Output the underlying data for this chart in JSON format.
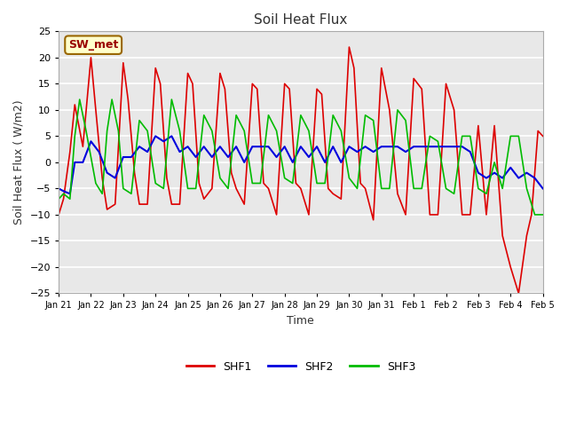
{
  "title": "Soil Heat Flux",
  "xlabel": "Time",
  "ylabel": "Soil Heat Flux ( W/m2)",
  "ylim": [
    -25,
    25
  ],
  "fig_bg_color": "#ffffff",
  "plot_bg_color": "#e8e8e8",
  "grid_color": "#ffffff",
  "annotation_text": "SW_met",
  "annotation_bg": "#ffffcc",
  "annotation_border": "#996600",
  "annotation_text_color": "#990000",
  "legend_labels": [
    "SHF1",
    "SHF2",
    "SHF3"
  ],
  "line_colors": [
    "#dd0000",
    "#0000dd",
    "#00bb00"
  ],
  "xtick_labels": [
    "Jan 21",
    "Jan 22",
    "Jan 23",
    "Jan 24",
    "Jan 25",
    "Jan 26",
    "Jan 27",
    "Jan 28",
    "Jan 29",
    "Jan 30",
    "Jan 31",
    "Feb 1",
    "Feb 2",
    "Feb 3",
    "Feb 4",
    "Feb 5"
  ],
  "shf1_x": [
    0,
    0.3,
    0.7,
    1.0,
    1.5,
    2.0,
    2.3,
    2.7,
    3.0,
    3.5,
    4.0,
    4.3,
    4.7,
    5.0,
    5.5,
    6.0,
    6.3,
    6.7,
    7.0,
    7.5,
    8.0,
    8.3,
    8.7,
    9.0,
    9.5,
    10.0,
    10.3,
    10.7,
    11.0,
    11.5,
    12.0,
    12.3,
    12.7,
    13.0,
    13.5,
    14.0,
    14.3,
    14.7,
    15.0,
    15.5,
    16.0,
    16.3,
    16.7,
    17.0,
    17.5,
    18.0,
    18.3,
    18.7,
    19.0,
    19.5,
    20.0,
    20.5,
    21.0,
    21.5,
    22.0,
    22.5,
    23.0,
    23.5,
    24.0,
    24.5,
    25.0,
    25.5,
    26.0,
    26.5,
    27.0,
    27.5,
    28.0,
    28.5,
    29.0,
    29.3,
    29.7,
    30.0
  ],
  "shf1_y": [
    -10,
    -7,
    2,
    11,
    3,
    20,
    10,
    -3,
    -9,
    -8,
    19,
    12,
    -2,
    -8,
    -8,
    18,
    15,
    -3,
    -8,
    -8,
    17,
    15,
    -4,
    -7,
    -5,
    17,
    14,
    -2,
    -5,
    -8,
    15,
    14,
    -4,
    -5,
    -10,
    15,
    14,
    -4,
    -5,
    -10,
    14,
    13,
    -5,
    -6,
    -7,
    22,
    18,
    -4,
    -5,
    -11,
    18,
    10,
    -6,
    -10,
    16,
    14,
    -10,
    -10,
    15,
    10,
    -10,
    -10,
    7,
    -10,
    7,
    -14,
    -20,
    -25,
    -14,
    -10,
    6,
    5
  ],
  "shf2_x": [
    0,
    0.3,
    0.7,
    1.0,
    1.5,
    2.0,
    2.5,
    3.0,
    3.5,
    4.0,
    4.5,
    5.0,
    5.5,
    6.0,
    6.5,
    7.0,
    7.5,
    8.0,
    8.5,
    9.0,
    9.5,
    10.0,
    10.5,
    11.0,
    11.5,
    12.0,
    12.5,
    13.0,
    13.5,
    14.0,
    14.5,
    15.0,
    15.5,
    16.0,
    16.5,
    17.0,
    17.5,
    18.0,
    18.5,
    19.0,
    19.5,
    20.0,
    20.5,
    21.0,
    21.5,
    22.0,
    22.5,
    23.0,
    23.5,
    24.0,
    24.5,
    25.0,
    25.5,
    26.0,
    26.5,
    27.0,
    27.5,
    28.0,
    28.5,
    29.0,
    29.5,
    30.0
  ],
  "shf2_y": [
    -5,
    -5.5,
    -6,
    0,
    0,
    4,
    2,
    -2,
    -3,
    1,
    1,
    3,
    2,
    5,
    4,
    5,
    2,
    3,
    1,
    3,
    1,
    3,
    1,
    3,
    0,
    3,
    3,
    3,
    1,
    3,
    0,
    3,
    1,
    3,
    0,
    3,
    0,
    3,
    2,
    3,
    2,
    3,
    3,
    3,
    2,
    3,
    3,
    3,
    3,
    3,
    3,
    3,
    2,
    -2,
    -3,
    -2,
    -3,
    -1,
    -3,
    -2,
    -3,
    -5
  ],
  "shf3_x": [
    0,
    0.3,
    0.7,
    1.0,
    1.3,
    1.7,
    2.0,
    2.3,
    2.7,
    3.0,
    3.3,
    3.7,
    4.0,
    4.5,
    5.0,
    5.5,
    6.0,
    6.5,
    7.0,
    7.5,
    8.0,
    8.5,
    9.0,
    9.5,
    10.0,
    10.5,
    11.0,
    11.5,
    12.0,
    12.5,
    13.0,
    13.5,
    14.0,
    14.5,
    15.0,
    15.5,
    16.0,
    16.5,
    17.0,
    17.5,
    18.0,
    18.5,
    19.0,
    19.5,
    20.0,
    20.5,
    21.0,
    21.5,
    22.0,
    22.5,
    23.0,
    23.5,
    24.0,
    24.5,
    25.0,
    25.5,
    26.0,
    26.5,
    27.0,
    27.5,
    28.0,
    28.5,
    29.0,
    29.5,
    30.0
  ],
  "shf3_y": [
    -7,
    -6,
    -7,
    5,
    12,
    6,
    1,
    -4,
    -6,
    6,
    12,
    6,
    -5,
    -6,
    8,
    6,
    -4,
    -5,
    12,
    6,
    -5,
    -5,
    9,
    6,
    -3,
    -5,
    9,
    6,
    -4,
    -4,
    9,
    6,
    -3,
    -4,
    9,
    6,
    -4,
    -4,
    9,
    6,
    -3,
    -5,
    9,
    8,
    -5,
    -5,
    10,
    8,
    -5,
    -5,
    5,
    4,
    -5,
    -6,
    5,
    5,
    -5,
    -6,
    0,
    -5,
    5,
    5,
    -5,
    -10,
    -10
  ],
  "n_ticks": 16
}
